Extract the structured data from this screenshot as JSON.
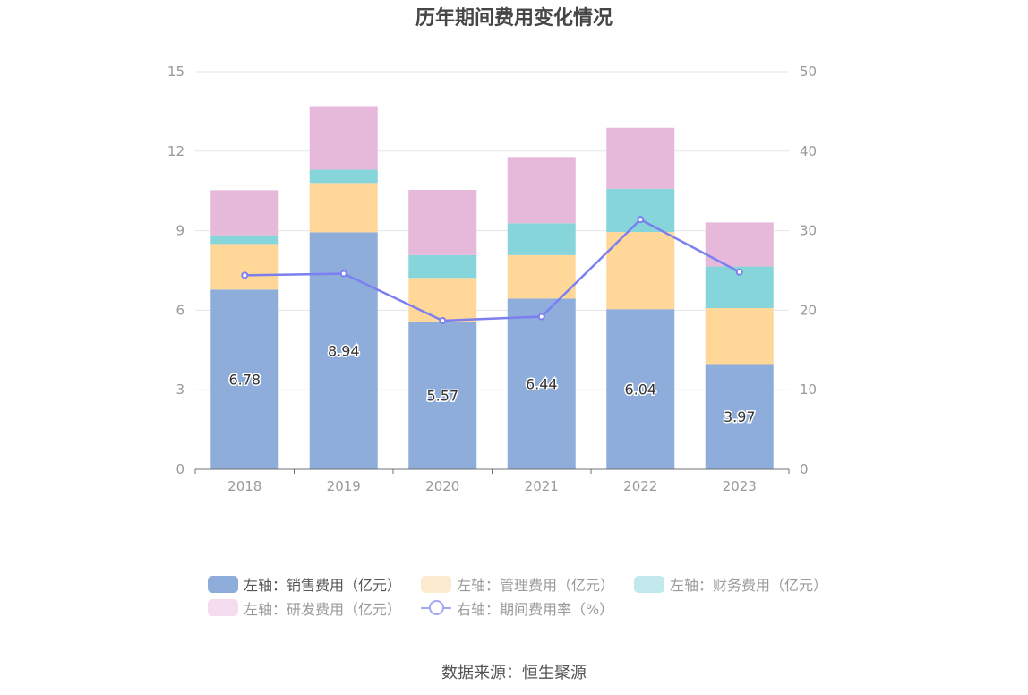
{
  "chart_data": {
    "type": "bar",
    "title": "历年期间费用变化情况",
    "categories": [
      "2018",
      "2019",
      "2020",
      "2021",
      "2022",
      "2023"
    ],
    "series": [
      {
        "name": "左轴：销售费用（亿元）",
        "axis": "left",
        "stack": "cost",
        "color": "#8eadda",
        "values": [
          6.78,
          8.94,
          5.57,
          6.44,
          6.04,
          3.97
        ],
        "labels": [
          "6.78",
          "8.94",
          "5.57",
          "6.44",
          "6.04",
          "3.97"
        ]
      },
      {
        "name": "左轴：管理费用（亿元）",
        "axis": "left",
        "stack": "cost",
        "color": "#ffd899",
        "values": [
          1.72,
          1.86,
          1.65,
          1.64,
          2.91,
          2.11
        ]
      },
      {
        "name": "左轴：财务费用（亿元）",
        "axis": "left",
        "stack": "cost",
        "color": "#85d5da",
        "values": [
          0.33,
          0.5,
          0.86,
          1.2,
          1.63,
          1.57
        ]
      },
      {
        "name": "左轴：研发费用（亿元）",
        "axis": "left",
        "stack": "cost",
        "color": "#e6b9db",
        "values": [
          1.7,
          2.4,
          2.46,
          2.5,
          2.3,
          1.66
        ]
      },
      {
        "name": "右轴：期间费用率（%）",
        "axis": "right",
        "type": "line",
        "color": "#7b7ff0",
        "values": [
          24.4,
          24.6,
          18.7,
          19.2,
          31.4,
          24.8
        ]
      }
    ],
    "y_left": {
      "ylim": [
        0,
        15
      ],
      "ticks": [
        "0",
        "3",
        "6",
        "9",
        "12",
        "15"
      ]
    },
    "y_right": {
      "ylim": [
        0,
        50
      ],
      "ticks": [
        "0",
        "10",
        "20",
        "30",
        "40",
        "50"
      ]
    },
    "grid": true,
    "legend_position": "bottom"
  },
  "legend": {
    "items": [
      {
        "label": "左轴：销售费用（亿元）",
        "color": "#8eadda",
        "kind": "box",
        "active": true
      },
      {
        "label": "左轴：管理费用（亿元）",
        "color": "#fdebd0",
        "kind": "box",
        "active": false
      },
      {
        "label": "左轴：财务费用（亿元）",
        "color": "#c1e8ec",
        "kind": "box",
        "active": false
      },
      {
        "label": "左轴：研发费用（亿元）",
        "color": "#f5dcef",
        "kind": "box",
        "active": false
      },
      {
        "label": "右轴：期间费用率（%）",
        "color": "#a3a8f0",
        "kind": "line",
        "active": false
      }
    ]
  },
  "source": "数据来源：恒生聚源"
}
